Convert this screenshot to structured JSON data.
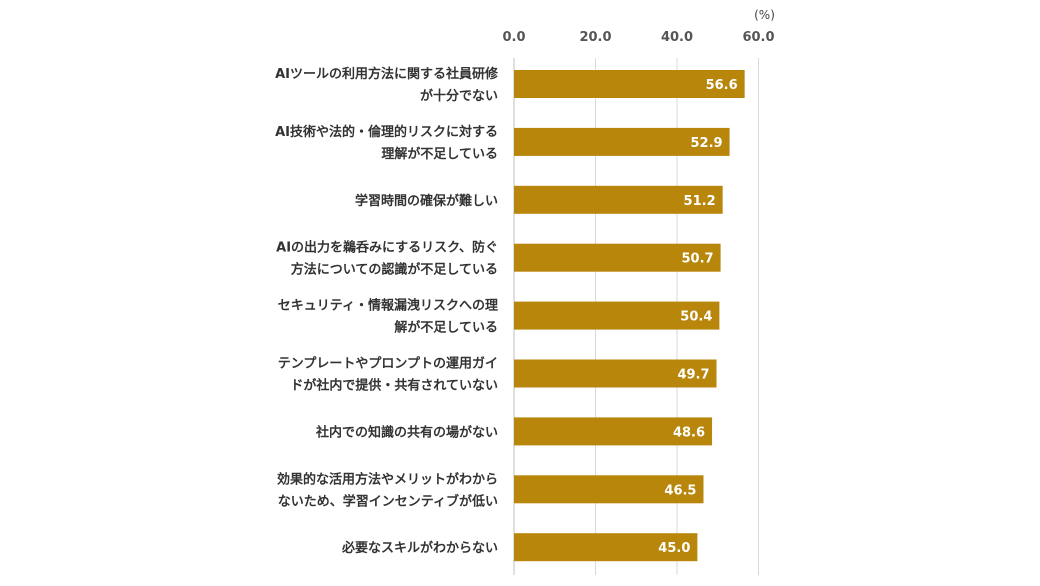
{
  "chart_data": {
    "type": "bar",
    "orientation": "horizontal",
    "unit": "(%)",
    "categories": [
      [
        "AIツールの利用方法に関する社員研修",
        "が十分でない"
      ],
      [
        "AI技術や法的・倫理的リスクに対する",
        "理解が不足している"
      ],
      [
        "学習時間の確保が難しい"
      ],
      [
        "AIの出力を鵜呑みにするリスク、防ぐ",
        "方法についての認識が不足している"
      ],
      [
        "セキュリティ・情報漏洩リスクへの理",
        "解が不足している"
      ],
      [
        "テンプレートやプロンプトの運用ガイ",
        "ドが社内で提供・共有されていない"
      ],
      [
        "社内での知識の共有の場がない"
      ],
      [
        "効果的な活用方法やメリットがわから",
        "ないため、学習インセンティブが低い"
      ],
      [
        "必要なスキルがわからない"
      ]
    ],
    "values": [
      56.6,
      52.9,
      51.2,
      50.7,
      50.4,
      49.7,
      48.6,
      46.5,
      45.0
    ],
    "value_labels": [
      "56.6",
      "52.9",
      "51.2",
      "50.7",
      "50.4",
      "49.7",
      "48.6",
      "46.5",
      "45.0"
    ],
    "xticks": [
      "0.0",
      "20.0",
      "40.0",
      "60.0"
    ],
    "xtick_values": [
      0,
      20,
      40,
      60
    ],
    "xlim": [
      0,
      60
    ],
    "bar_color": "#B8860B",
    "grid": true,
    "legend": "none"
  }
}
